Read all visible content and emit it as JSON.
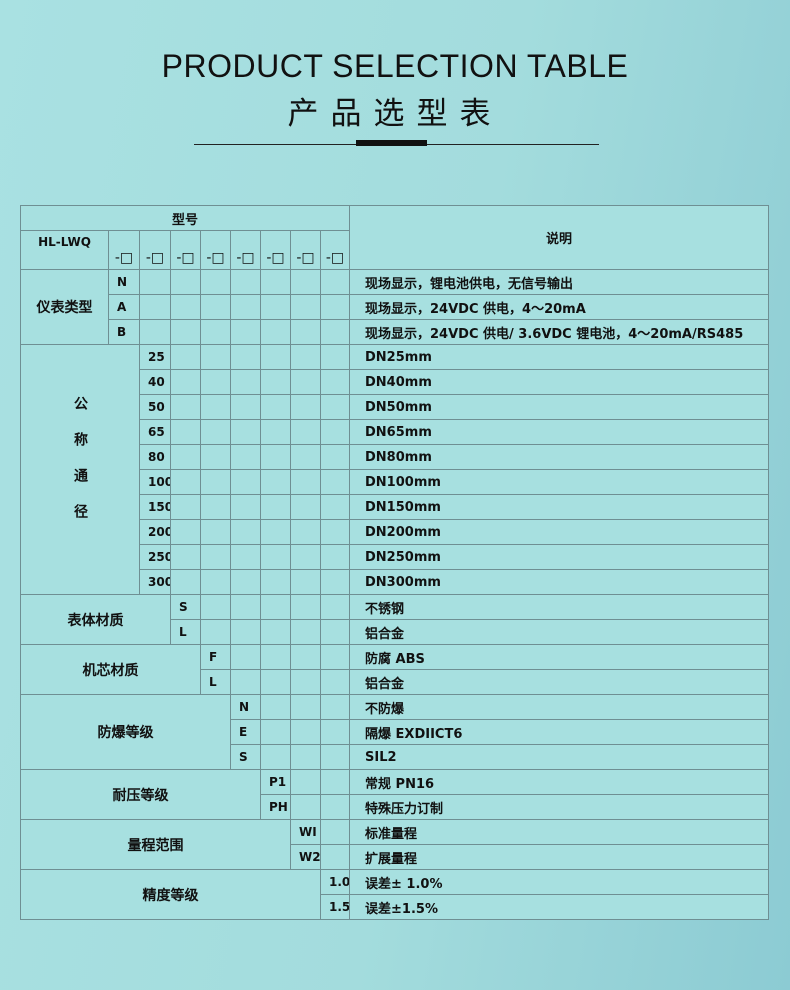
{
  "header": {
    "title_en": "PRODUCT SELECTION TABLE",
    "title_cn": "产品选型表"
  },
  "table": {
    "model_header": "型号",
    "desc_header": "说明",
    "model_name": "HL-LWQ",
    "slot_label": "-□",
    "groups": [
      {
        "label": "仪表类型",
        "code_col": 1,
        "vertical": false,
        "items": [
          {
            "code": "N",
            "desc": "现场显示，锂电池供电，无信号输出"
          },
          {
            "code": "A",
            "desc": "现场显示，24VDC 供电，4～20mA"
          },
          {
            "code": "B",
            "desc": "现场显示，24VDC 供电/ 3.6VDC 锂电池，4～20mA/RS485"
          }
        ]
      },
      {
        "label": "公称通径",
        "code_col": 2,
        "vertical": true,
        "items": [
          {
            "code": "25",
            "desc": "DN25mm"
          },
          {
            "code": "40",
            "desc": "DN40mm"
          },
          {
            "code": "50",
            "desc": "DN50mm"
          },
          {
            "code": "65",
            "desc": "DN65mm"
          },
          {
            "code": "80",
            "desc": "DN80mm"
          },
          {
            "code": "100",
            "desc": "DN100mm"
          },
          {
            "code": "150",
            "desc": "DN150mm"
          },
          {
            "code": "200",
            "desc": "DN200mm"
          },
          {
            "code": "250",
            "desc": "DN250mm"
          },
          {
            "code": "300",
            "desc": "DN300mm"
          }
        ]
      },
      {
        "label": "表体材质",
        "code_col": 3,
        "vertical": false,
        "items": [
          {
            "code": "S",
            "desc": "不锈钢"
          },
          {
            "code": "L",
            "desc": "铝合金"
          }
        ]
      },
      {
        "label": "机芯材质",
        "code_col": 4,
        "vertical": false,
        "items": [
          {
            "code": "F",
            "desc": "防腐 ABS"
          },
          {
            "code": "L",
            "desc": "铝合金"
          }
        ]
      },
      {
        "label": "防爆等级",
        "code_col": 5,
        "vertical": false,
        "items": [
          {
            "code": "N",
            "desc": "不防爆"
          },
          {
            "code": "E",
            "desc": "隔爆 EXDIICT6"
          },
          {
            "code": "S",
            "desc": "SIL2"
          }
        ]
      },
      {
        "label": "耐压等级",
        "code_col": 6,
        "vertical": false,
        "items": [
          {
            "code": "P1",
            "desc": "常规 PN16"
          },
          {
            "code": "PH",
            "desc": "特殊压力订制"
          }
        ]
      },
      {
        "label": "量程范围",
        "code_col": 7,
        "vertical": false,
        "items": [
          {
            "code": "WI",
            "desc": "标准量程"
          },
          {
            "code": "W2",
            "desc": "扩展量程"
          }
        ]
      },
      {
        "label": "精度等级",
        "code_col": 8,
        "vertical": false,
        "items": [
          {
            "code": "1.0",
            "desc": "误差± 1.0%"
          },
          {
            "code": "1.5",
            "desc": "误差±1.5%"
          }
        ]
      }
    ]
  }
}
